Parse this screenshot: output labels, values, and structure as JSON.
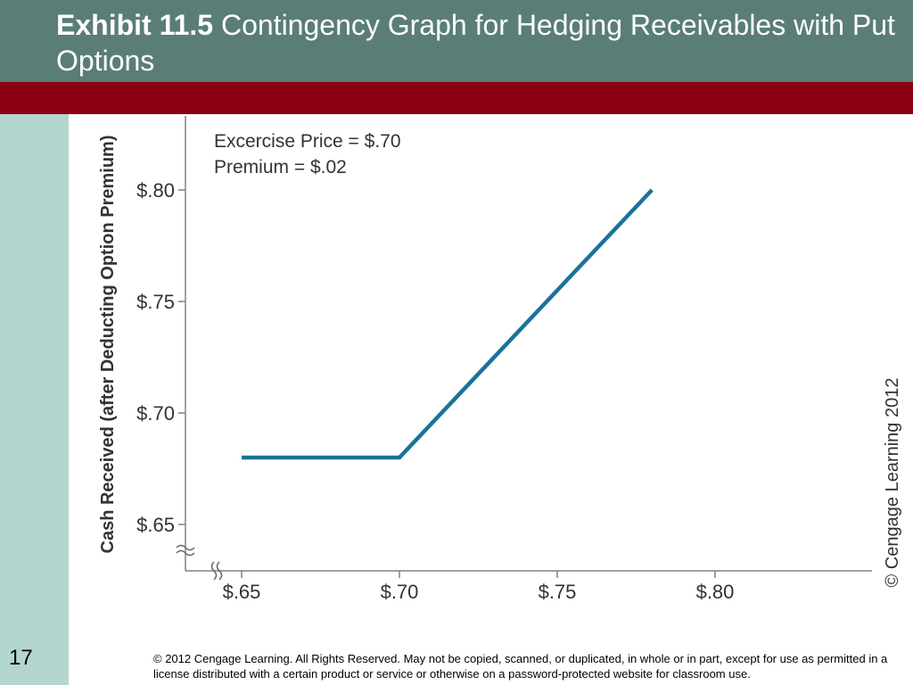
{
  "header": {
    "exhibit": "Exhibit 11.5",
    "title": "Contingency Graph for Hedging Receivables with Put Options"
  },
  "slide": {
    "number": "17"
  },
  "footer": {
    "copyright": "© 2012 Cengage Learning. All Rights Reserved. May not be copied, scanned, or duplicated, in whole or in part, except for use as permitted in a license distributed with a certain product or service or otherwise on a password-protected website for classroom use."
  },
  "colors": {
    "header_bg": "#5a7d78",
    "band": "#8b0010",
    "sidebar": "#b4d6d1",
    "line": "#1a7399"
  },
  "chart_data": {
    "type": "line",
    "ylabel": "Cash Received (after Deducting Option Premium)",
    "xlabel": "",
    "annotations": [
      "Excercise Price = $.70",
      "Premium = $.02"
    ],
    "credit": "© Cengage Learning 2012",
    "x_ticks": [
      0.65,
      0.7,
      0.75,
      0.8
    ],
    "x_tick_labels": [
      "$.65",
      "$.70",
      "$.75",
      "$.80"
    ],
    "y_ticks": [
      0.65,
      0.7,
      0.75,
      0.8
    ],
    "y_tick_labels": [
      "$.65",
      "$.70",
      "$.75",
      "$.80"
    ],
    "xlim": [
      0.63,
      0.85
    ],
    "ylim": [
      0.63,
      0.83
    ],
    "axis_breaks": true,
    "grid": false,
    "series": [
      {
        "x": [
          0.65,
          0.7,
          0.78
        ],
        "y": [
          0.68,
          0.68,
          0.8
        ]
      }
    ]
  }
}
